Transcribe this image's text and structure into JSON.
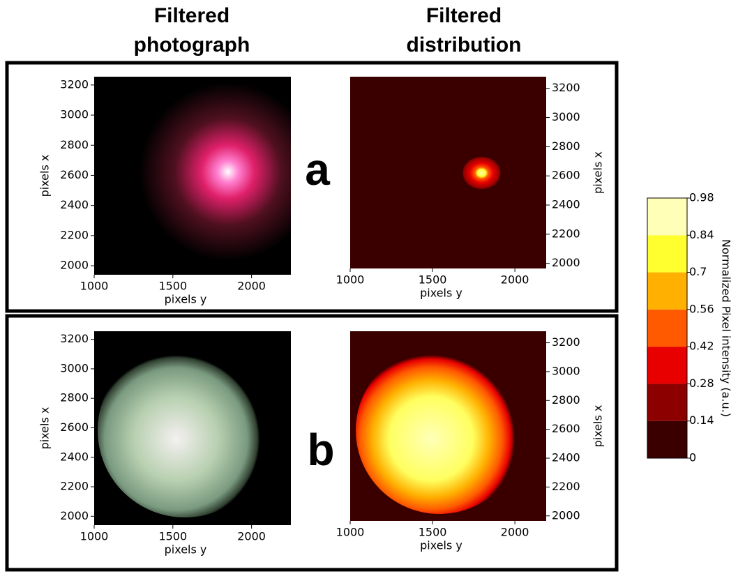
{
  "column_titles": [
    [
      "Filtered",
      "photograph"
    ],
    [
      "Filtered",
      "distribution"
    ]
  ],
  "panels": [
    {
      "label": "a",
      "plots": [
        {
          "xlabel": "pixels y",
          "ylabel": "pixels x",
          "xlim": [
            1000,
            2250
          ],
          "ylim": [
            1940,
            3255
          ],
          "xticks": [
            1000,
            1500,
            2000
          ],
          "yticks": [
            2000,
            2200,
            2400,
            2600,
            2800,
            3000,
            3200
          ]
        },
        {
          "xlabel": "pixels y",
          "ylabel": "pixels x",
          "xlim": [
            1000,
            2190
          ],
          "ylim": [
            1965,
            3280
          ],
          "xticks": [
            1000,
            1500,
            2000
          ],
          "yticks": [
            2000,
            2200,
            2400,
            2600,
            2800,
            3000,
            3200
          ]
        }
      ]
    },
    {
      "label": "b",
      "plots": [
        {
          "xlabel": "pixels y",
          "ylabel": "pixels x",
          "xlim": [
            1000,
            2250
          ],
          "ylim": [
            1940,
            3255
          ],
          "xticks": [
            1000,
            1500,
            2000
          ],
          "yticks": [
            2000,
            2200,
            2400,
            2600,
            2800,
            3000,
            3200
          ]
        },
        {
          "xlabel": "pixels y",
          "ylabel": "pixels x",
          "xlim": [
            1000,
            2190
          ],
          "ylim": [
            1965,
            3280
          ],
          "xticks": [
            1000,
            1500,
            2000
          ],
          "yticks": [
            2000,
            2200,
            2400,
            2600,
            2800,
            3000,
            3200
          ]
        }
      ]
    }
  ],
  "colorbar": {
    "label": "Normalized Pixel intensity (a.u.)",
    "lim": [
      0,
      0.98
    ],
    "ticks": [
      0,
      0.14,
      0.28,
      0.42,
      0.56,
      0.7,
      0.84,
      0.98
    ],
    "colors": [
      "#3a0000",
      "#8c0000",
      "#e80000",
      "#ff5a00",
      "#ffb000",
      "#ffff30",
      "#ffffb8"
    ]
  }
}
